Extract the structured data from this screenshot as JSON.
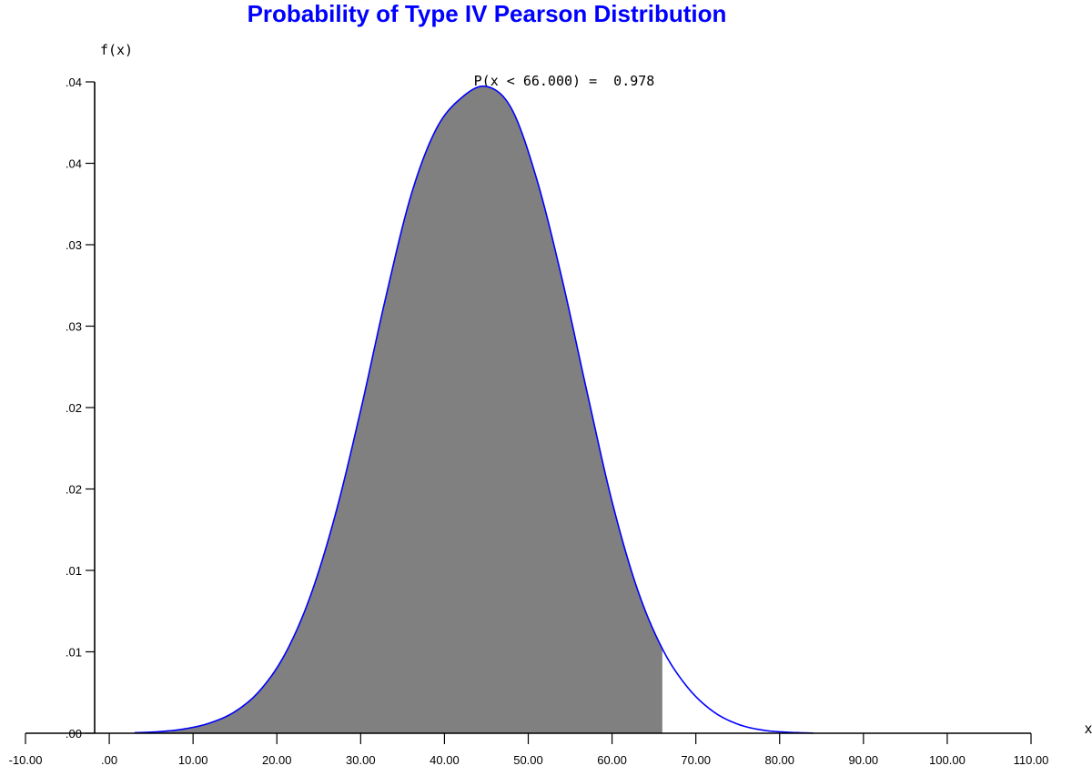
{
  "chart_data": {
    "type": "area",
    "title": "Probability of Type IV Pearson Distribution",
    "ylabel": "f(x)",
    "xlabel": "x",
    "annotation": "P(x < 66.000) =  0.978",
    "xlim": [
      -10,
      110
    ],
    "ylim": [
      0,
      0.04
    ],
    "x_ticks": [
      -10,
      0,
      10,
      20,
      30,
      40,
      50,
      60,
      70,
      80,
      90,
      100,
      110
    ],
    "x_tick_labels": [
      "-10.00",
      ".00",
      "10.00",
      "20.00",
      "30.00",
      "40.00",
      "50.00",
      "60.00",
      "70.00",
      "80.00",
      "90.00",
      "100.00",
      "110.00"
    ],
    "y_ticks": [
      0,
      0.005,
      0.01,
      0.015,
      0.02,
      0.025,
      0.03,
      0.035,
      0.04
    ],
    "y_tick_labels": [
      ".00",
      ".01",
      ".01",
      ".02",
      ".02",
      ".03",
      ".03",
      ".04",
      ".04"
    ],
    "shade_upper_x": 66.0,
    "probability": 0.978,
    "series": [
      {
        "x": [
          3,
          6,
          9,
          12,
          15,
          18,
          21,
          24,
          27,
          30,
          33,
          36,
          39,
          42,
          45,
          48,
          51,
          54,
          57,
          60,
          63,
          66,
          69,
          72,
          75,
          78,
          81,
          84
        ],
        "values": [
          3e-05,
          0.0001,
          0.00027,
          0.00063,
          0.00133,
          0.00264,
          0.00489,
          0.00843,
          0.01347,
          0.01983,
          0.02678,
          0.03302,
          0.03709,
          0.03901,
          0.03972,
          0.03836,
          0.03405,
          0.02797,
          0.02099,
          0.01423,
          0.00888,
          0.00519,
          0.00283,
          0.00136,
          0.00056,
          0.00019,
          6e-05,
          1e-05
        ],
        "color": "#0000ff"
      }
    ],
    "colors": {
      "fill": "#808080",
      "curve": "#0000ff",
      "title": "#0000ff",
      "axis": "#000000"
    },
    "grid": false
  }
}
